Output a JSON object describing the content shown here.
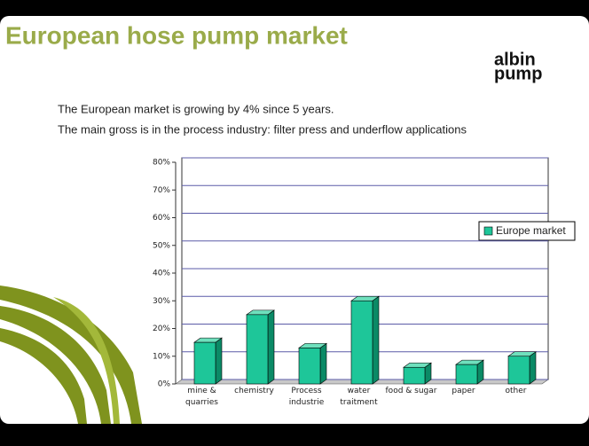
{
  "header": {
    "title": "European hose pump market",
    "logo_top": "albin",
    "logo_bottom": "pump"
  },
  "text": {
    "line1": "The European market is growing by 4% since 5 years.",
    "line2": "The main gross is in the process industry: filter press and underflow applications"
  },
  "chart_data": {
    "type": "bar",
    "categories": [
      "mine & quarries",
      "chemistry",
      "Process industrie",
      "water traitment",
      "food & sugar",
      "paper",
      "other"
    ],
    "series": [
      {
        "name": "Europe market",
        "color": "#1ec699",
        "values": [
          15,
          25,
          13,
          30,
          6,
          7,
          10
        ]
      }
    ],
    "ylim": [
      0,
      80
    ],
    "yticks": [
      {
        "value": 0,
        "label": "0%"
      },
      {
        "value": 10,
        "label": "10%"
      },
      {
        "value": 20,
        "label": "20%"
      },
      {
        "value": 30,
        "label": "30%"
      },
      {
        "value": 40,
        "label": "40%"
      },
      {
        "value": 50,
        "label": "50%"
      },
      {
        "value": 60,
        "label": "60%"
      },
      {
        "value": 70,
        "label": "70%"
      },
      {
        "value": 80,
        "label": "80%"
      }
    ],
    "grid": true,
    "legend": "right"
  }
}
